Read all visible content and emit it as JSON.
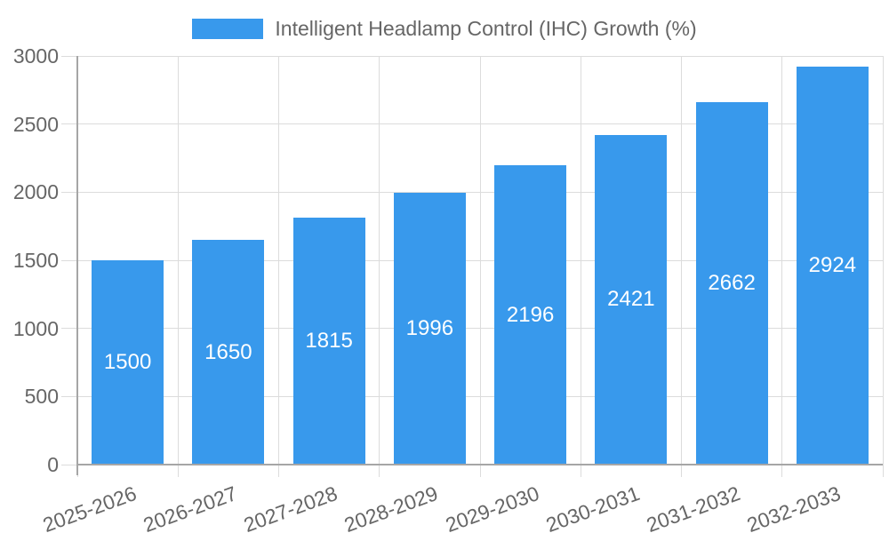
{
  "legend": {
    "label": "Intelligent Headlamp Control (IHC) Growth (%)"
  },
  "chart_data": {
    "type": "bar",
    "categories": [
      "2025-2026",
      "2026-2027",
      "2027-2028",
      "2028-2029",
      "2029-2030",
      "2030-2031",
      "2031-2032",
      "2032-2033"
    ],
    "series": [
      {
        "name": "Intelligent Headlamp Control (IHC) Growth (%)",
        "values": [
          1500,
          1650,
          1815,
          1996,
          2196,
          2421,
          2662,
          2924
        ]
      }
    ],
    "title": "",
    "xlabel": "",
    "ylabel": "",
    "ylim": [
      0,
      3000
    ],
    "yticks": [
      0,
      500,
      1000,
      1500,
      2000,
      2500,
      3000
    ],
    "grid": true,
    "legend_position": "top",
    "value_labels": "centered-white-inside-bars",
    "x_label_rotation_deg": -20,
    "colors": {
      "bar": "#3899EC",
      "grid": "#DCDCDC",
      "axis": "#A6A6A6",
      "text": "#666666",
      "value_label": "#FFFFFF",
      "background": "#FFFFFF"
    }
  }
}
